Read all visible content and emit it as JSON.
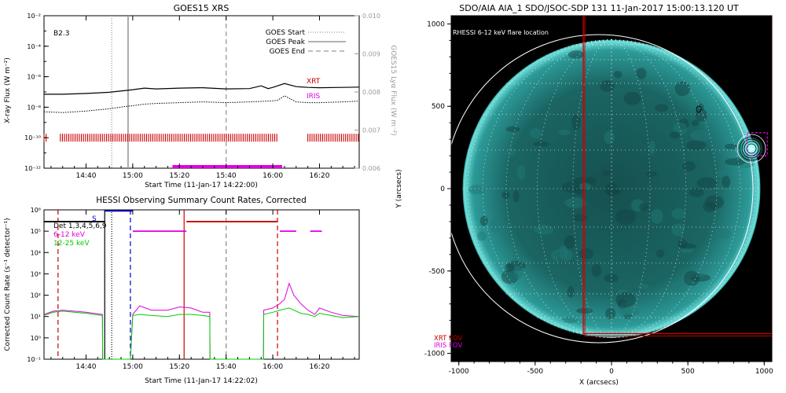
{
  "panels": {
    "goes": {
      "title": "GOES15 XRS",
      "xlabel": "Start Time (11-Jan-17 14:22:00)",
      "ylabel": "X-ray Flux (W m⁻²)",
      "y2label": "GOES15 Lyα Flux (W m⁻²)",
      "class_label": "B2.3",
      "legend": [
        "GOES Start",
        "GOES Peak",
        "GOES End"
      ],
      "inst_labels": [
        {
          "text": "XRT",
          "color": "#cc0000"
        },
        {
          "text": "IRIS",
          "color": "#e000e0"
        }
      ]
    },
    "hessi": {
      "title": "HESSI Observing Summary Count Rates, Corrected",
      "xlabel": "Start Time (11-Jan-17 14:22:02)",
      "ylabel": "Corrected Count Rate (s⁻¹ detector⁻¹)",
      "legend": [
        {
          "text": "Det 1,3,4,5,6,9",
          "color": "#000000"
        },
        {
          "text": "6-12 keV",
          "color": "#e000e0"
        },
        {
          "text": "12-25 keV",
          "color": "#00cc00"
        }
      ],
      "marker": "S"
    },
    "aia": {
      "title": "SDO/AIA AIA_1 SDO/JSOC-SDP 131 11-Jan-2017 15:00:13.120 UT",
      "xlabel": "X (arcsecs)",
      "ylabel": "Y (arcsecs)",
      "flare_label": "RHESSI 6-12 keV flare location",
      "fov_labels": [
        {
          "text": "XRT FOV",
          "color": "#cc0000"
        },
        {
          "text": "IRIS FOV",
          "color": "#e000e0"
        }
      ]
    }
  },
  "chart_data": [
    {
      "type": "line",
      "title": "GOES15 XRS",
      "x_tick_labels": [
        "14:40",
        "15:00",
        "15:20",
        "15:40",
        "16:00",
        "16:20"
      ],
      "x_ticks_minutes": [
        40,
        60,
        80,
        100,
        120,
        140
      ],
      "xlim_minutes_after_1400": [
        22,
        157
      ],
      "ylim_log10": [
        -12,
        -2
      ],
      "y_tick_labels": [
        "10⁻²",
        "10⁻⁴",
        "10⁻⁶",
        "10⁻⁸",
        "10⁻¹⁰",
        "10⁻¹²"
      ],
      "y2_lim": [
        0.006,
        0.01
      ],
      "y2_tick_labels": [
        "0.010",
        "0.009",
        "0.008",
        "0.007",
        "0.006"
      ],
      "series": [
        {
          "name": "",
          "style": "solid",
          "x": [
            22,
            30,
            40,
            50,
            57,
            60,
            65,
            70,
            80,
            90,
            100,
            110,
            115,
            118,
            120,
            125,
            130,
            135,
            140,
            150,
            157
          ],
          "log10_y": [
            -7.15,
            -7.15,
            -7.1,
            -7.02,
            -6.9,
            -6.85,
            -6.75,
            -6.8,
            -6.75,
            -6.72,
            -6.8,
            -6.78,
            -6.6,
            -6.78,
            -6.7,
            -6.45,
            -6.65,
            -6.7,
            -6.72,
            -6.7,
            -6.68
          ]
        },
        {
          "name": "",
          "style": "dotted",
          "x": [
            22,
            30,
            40,
            50,
            57,
            60,
            65,
            70,
            80,
            90,
            100,
            110,
            118,
            122,
            125,
            130,
            135,
            140,
            150,
            157
          ],
          "log10_y": [
            -8.3,
            -8.35,
            -8.25,
            -8.1,
            -7.95,
            -7.9,
            -7.8,
            -7.75,
            -7.7,
            -7.65,
            -7.7,
            -7.65,
            -7.6,
            -7.55,
            -7.25,
            -7.65,
            -7.7,
            -7.7,
            -7.65,
            -7.6
          ]
        }
      ],
      "vlines": [
        {
          "label": "GOES Start",
          "x": 51,
          "style": "dotted"
        },
        {
          "label": "GOES Peak",
          "x": 58,
          "style": "solid"
        },
        {
          "label": "GOES End",
          "x": 100,
          "style": "dashed"
        }
      ],
      "coverage": [
        {
          "label": "XRT",
          "log10_y": -10,
          "intervals": [
            [
              22,
              23.5
            ],
            [
              29,
              122
            ],
            [
              135,
              157
            ]
          ]
        },
        {
          "label": "IRIS",
          "log10_y": -11.9,
          "intervals": [
            [
              77,
              124
            ]
          ]
        }
      ]
    },
    {
      "type": "line",
      "title": "HESSI Observing Summary Count Rates, Corrected",
      "x_tick_labels": [
        "14:40",
        "15:00",
        "15:20",
        "15:40",
        "16:00",
        "16:20"
      ],
      "x_ticks_minutes": [
        40,
        60,
        80,
        100,
        120,
        140
      ],
      "xlim_minutes_after_1400": [
        22,
        157
      ],
      "ylim_log10": [
        -1,
        6
      ],
      "y_tick_labels": [
        "10⁶",
        "10⁵",
        "10⁴",
        "10³",
        "10²",
        "10¹",
        "10⁰",
        "10⁻¹"
      ],
      "series": [
        {
          "name": "6-12 keV",
          "color": "#e000e0",
          "x": [
            22,
            26,
            30,
            35,
            40,
            47,
            47.1,
            59,
            60,
            63,
            68,
            75,
            80,
            85,
            90,
            93,
            93.1,
            116,
            116.1,
            120,
            123,
            125,
            127,
            129,
            132,
            135,
            138,
            140,
            145,
            150,
            157
          ],
          "log10_y": [
            1.1,
            1.25,
            1.3,
            1.25,
            1.2,
            1.1,
            -1,
            -1,
            1.1,
            1.5,
            1.3,
            1.3,
            1.45,
            1.4,
            1.2,
            1.2,
            -1,
            -1,
            1.3,
            1.4,
            1.6,
            1.8,
            2.55,
            2.0,
            1.6,
            1.3,
            1.1,
            1.4,
            1.2,
            1.05,
            1.0
          ]
        },
        {
          "name": "12-25 keV",
          "color": "#00cc00",
          "x": [
            22,
            26,
            30,
            35,
            40,
            47,
            47.1,
            59,
            60,
            63,
            68,
            75,
            80,
            85,
            90,
            93,
            93.1,
            116,
            116.1,
            120,
            123,
            125,
            127,
            129,
            132,
            135,
            138,
            140,
            145,
            150,
            157
          ],
          "log10_y": [
            1.05,
            1.2,
            1.25,
            1.2,
            1.15,
            1.05,
            -1,
            -1,
            1.05,
            1.1,
            1.05,
            1.0,
            1.1,
            1.1,
            1.05,
            1.0,
            -1,
            -1,
            1.1,
            1.2,
            1.3,
            1.35,
            1.4,
            1.3,
            1.15,
            1.1,
            1.0,
            1.15,
            1.05,
            0.95,
            1.0
          ]
        }
      ],
      "attenuator_states": [
        {
          "color": "#000000",
          "x": [
            22,
            48
          ],
          "log10_y": [
            5.45,
            5.45
          ]
        },
        {
          "color": "#0000cc",
          "x": [
            48,
            60
          ],
          "log10_y": [
            5.95,
            5.95
          ]
        },
        {
          "color": "#e000e0",
          "x": [
            60,
            83
          ],
          "log10_y": [
            5.0,
            5.0
          ]
        },
        {
          "color": "#cc0000",
          "x": [
            83,
            122
          ],
          "log10_y": [
            5.45,
            5.45
          ]
        },
        {
          "color": "#e000e0",
          "x": [
            123,
            130
          ],
          "log10_y": [
            5.0,
            5.0
          ]
        },
        {
          "color": "#e000e0",
          "x": [
            136,
            141
          ],
          "log10_y": [
            5.0,
            5.0
          ]
        }
      ],
      "vlines": [
        {
          "x": 28,
          "style": "dashed",
          "color": "#cc0000"
        },
        {
          "x": 48,
          "style": "solid",
          "color": "#000000"
        },
        {
          "x": 51,
          "style": "dotted",
          "color": "#000000"
        },
        {
          "x": 59,
          "style": "dashed",
          "color": "#0000cc"
        },
        {
          "x": 82,
          "style": "solid",
          "color": "#cc0000"
        },
        {
          "x": 100,
          "style": "dashed",
          "color": "#888888"
        },
        {
          "x": 122,
          "style": "dashed",
          "color": "#cc0000"
        }
      ]
    },
    {
      "type": "heatmap",
      "title": "SDO/AIA AIA_1 SDO/JSOC-SDP 131 11-Jan-2017 15:00:13.120 UT",
      "xlim": [
        -1050,
        1050
      ],
      "ylim": [
        -1050,
        1050
      ],
      "x_tick_values": [
        -1000,
        -500,
        0,
        500,
        1000
      ],
      "y_tick_values": [
        1000,
        500,
        0,
        -500,
        -1000
      ],
      "solar_radius_arcsec": 975,
      "xrt_fov": {
        "x": [
          -185,
          1050
        ],
        "y": [
          -880,
          1050
        ]
      },
      "iris_fov": {
        "x": [
          890,
          1020
        ],
        "y": [
          200,
          340
        ]
      },
      "flare_location": {
        "x": 975,
        "y": 255
      }
    }
  ]
}
